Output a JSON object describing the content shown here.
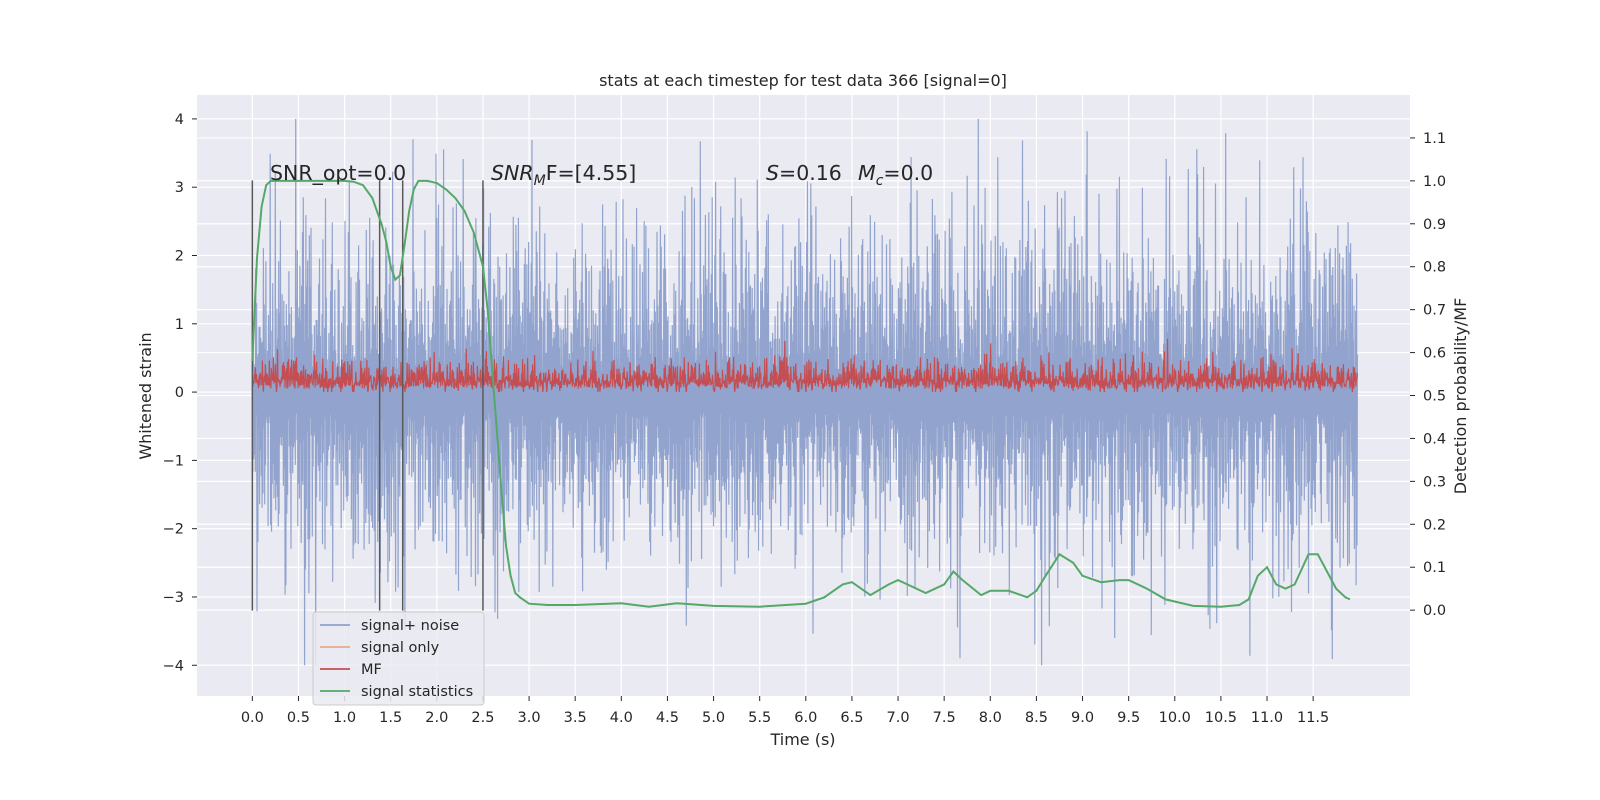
{
  "chart_data": {
    "type": "line",
    "title": "stats at each timestep for test data 366 [signal=0]",
    "xlabel": "Time (s)",
    "ylabel": "Whitened strain",
    "y2label": "Detection probability/MF",
    "xlim": [
      -0.6,
      12.55
    ],
    "ylim": [
      -4.45,
      4.35
    ],
    "y2lim": [
      -0.2,
      1.2
    ],
    "x_ticks": [
      "0.0",
      "0.5",
      "1.0",
      "1.5",
      "2.0",
      "2.5",
      "3.0",
      "3.5",
      "4.0",
      "4.5",
      "5.0",
      "5.5",
      "6.0",
      "6.5",
      "7.0",
      "7.5",
      "8.0",
      "8.5",
      "9.0",
      "9.5",
      "10.0",
      "10.5",
      "11.0",
      "11.5"
    ],
    "y_ticks": [
      "4",
      "3",
      "2",
      "1",
      "0",
      "−1",
      "−2",
      "−3",
      "−4"
    ],
    "y_tick_values": [
      4,
      3,
      2,
      1,
      0,
      -1,
      -2,
      -3,
      -4
    ],
    "y2_ticks": [
      "1.1",
      "1.0",
      "0.9",
      "0.8",
      "0.7",
      "0.6",
      "0.5",
      "0.4",
      "0.3",
      "0.2",
      "0.1",
      "0.0"
    ],
    "y2_tick_values": [
      1.1,
      1.0,
      0.9,
      0.8,
      0.7,
      0.6,
      0.5,
      0.4,
      0.3,
      0.2,
      0.1,
      0.0
    ],
    "grid": true,
    "legend_position": "lower-left",
    "annotations": {
      "snr_opt": "SNR_opt=0.0",
      "snr_mf_prefix": "SNR",
      "snr_mf_sub": "M",
      "snr_mf_suffix": "F=[4.55]",
      "s_symbol": "S",
      "s_value": "=0.16",
      "mc_symbol": "M",
      "mc_sub": "c",
      "mc_value": "=0.0"
    },
    "vertical_lines_x": [
      0.0,
      1.38,
      1.63,
      2.5
    ],
    "series": [
      {
        "name": "signal+ noise",
        "color": "#8da0cb",
        "axis": "left",
        "description_range": [
          -3.0,
          3.0
        ],
        "x_range": [
          0.0,
          11.98
        ]
      },
      {
        "name": "signal only",
        "color": "#e8a98c",
        "axis": "left",
        "values_constant": 0
      },
      {
        "name": "MF",
        "color": "#c44e52",
        "axis": "left",
        "band": [
          0.0,
          0.6
        ],
        "x_range": [
          0.0,
          11.98
        ]
      },
      {
        "name": "signal statistics",
        "color": "#55a868",
        "axis": "right",
        "x": [
          0.0,
          0.05,
          0.1,
          0.15,
          0.2,
          0.3,
          0.5,
          0.8,
          1.0,
          1.1,
          1.2,
          1.3,
          1.35,
          1.4,
          1.45,
          1.5,
          1.55,
          1.6,
          1.65,
          1.7,
          1.75,
          1.8,
          1.85,
          1.9,
          2.0,
          2.1,
          2.2,
          2.3,
          2.4,
          2.5,
          2.55,
          2.6,
          2.65,
          2.7,
          2.75,
          2.8,
          2.85,
          2.9,
          3.0,
          3.2,
          3.5,
          4.0,
          4.3,
          4.6,
          5.0,
          5.5,
          6.0,
          6.2,
          6.4,
          6.5,
          6.7,
          6.9,
          7.0,
          7.1,
          7.3,
          7.5,
          7.6,
          7.7,
          7.9,
          8.0,
          8.2,
          8.4,
          8.5,
          8.6,
          8.75,
          8.9,
          9.0,
          9.2,
          9.4,
          9.5,
          9.7,
          9.9,
          10.2,
          10.5,
          10.7,
          10.8,
          10.9,
          11.0,
          11.1,
          11.2,
          11.3,
          11.45,
          11.55,
          11.65,
          11.75,
          11.85,
          11.9
        ],
        "y": [
          0.58,
          0.82,
          0.94,
          0.99,
          1.0,
          1.0,
          1.0,
          1.0,
          1.0,
          0.998,
          0.99,
          0.96,
          0.93,
          0.9,
          0.86,
          0.8,
          0.77,
          0.78,
          0.85,
          0.93,
          0.98,
          1.0,
          1.0,
          1.0,
          0.995,
          0.98,
          0.96,
          0.93,
          0.88,
          0.8,
          0.7,
          0.56,
          0.42,
          0.28,
          0.15,
          0.08,
          0.04,
          0.03,
          0.015,
          0.012,
          0.012,
          0.016,
          0.008,
          0.016,
          0.01,
          0.008,
          0.015,
          0.03,
          0.06,
          0.065,
          0.035,
          0.06,
          0.07,
          0.06,
          0.04,
          0.06,
          0.09,
          0.07,
          0.035,
          0.045,
          0.045,
          0.03,
          0.045,
          0.08,
          0.13,
          0.11,
          0.08,
          0.065,
          0.07,
          0.07,
          0.05,
          0.025,
          0.01,
          0.008,
          0.012,
          0.025,
          0.08,
          0.1,
          0.06,
          0.05,
          0.06,
          0.13,
          0.13,
          0.09,
          0.05,
          0.03,
          0.025
        ]
      }
    ]
  }
}
